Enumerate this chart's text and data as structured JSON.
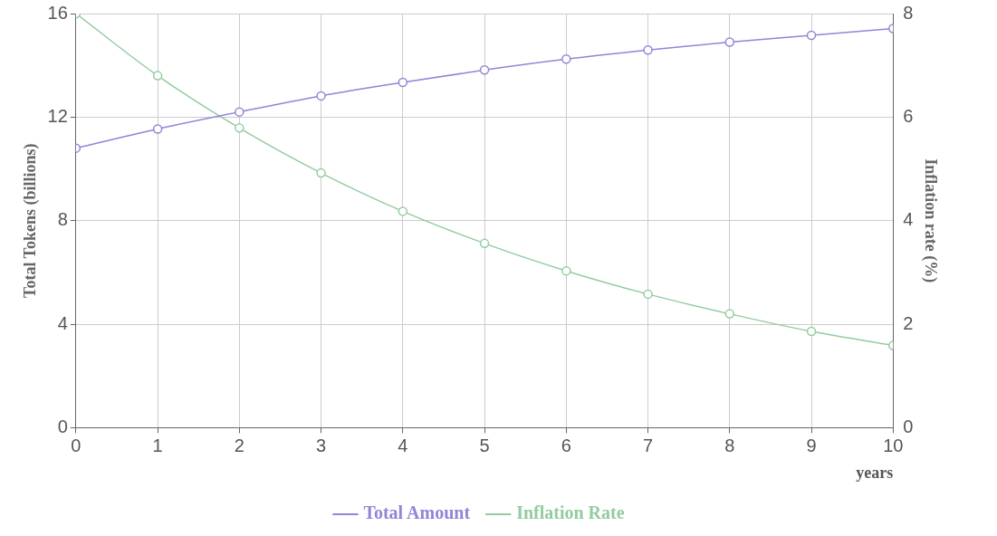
{
  "chart_data": {
    "type": "line",
    "xlabel": "years",
    "ylabel": "Total Tokens (billions)",
    "y2label": "Inflation rate (%)",
    "x": [
      0,
      1,
      2,
      3,
      4,
      5,
      6,
      7,
      8,
      9,
      10
    ],
    "xlim": [
      0,
      10
    ],
    "xticks": [
      0,
      1,
      2,
      3,
      4,
      5,
      6,
      7,
      8,
      9,
      10
    ],
    "ylim": [
      0,
      16
    ],
    "yticks": [
      0,
      4,
      8,
      12,
      16
    ],
    "y2lim": [
      0,
      8
    ],
    "y2ticks": [
      0,
      2,
      4,
      6,
      8
    ],
    "series": [
      {
        "name": "Total Amount",
        "color": "#8f86d8",
        "values": [
          10.8,
          11.54,
          12.2,
          12.82,
          13.34,
          13.82,
          14.24,
          14.59,
          14.9,
          15.16,
          15.42
        ]
      },
      {
        "name": "Inflation Rate",
        "color": "#93cca0",
        "axis": "y2",
        "values": [
          8.0,
          6.8,
          5.79,
          4.92,
          4.18,
          3.56,
          3.03,
          2.58,
          2.2,
          1.86,
          1.59
        ]
      }
    ],
    "grid": true,
    "legend": "bottom",
    "marker": "circle",
    "line_style": "solid"
  }
}
